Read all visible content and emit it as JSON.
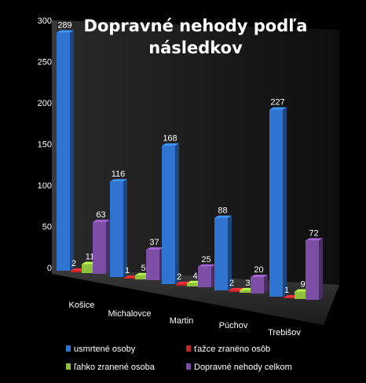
{
  "chart_data": {
    "type": "bar",
    "title_lines": [
      "Dopravné nehody podľa",
      "následkov"
    ],
    "categories": [
      "Košice",
      "Michalovce",
      "Martin",
      "Púchov",
      "Trebišov"
    ],
    "series": [
      {
        "name": "usmrtené osoby",
        "color": "#2f74d0",
        "values": [
          289,
          116,
          168,
          88,
          227
        ]
      },
      {
        "name": "ťažce zranëno osôb",
        "color": "#c0242a",
        "values": [
          2,
          1,
          2,
          2,
          1
        ]
      },
      {
        "name": "ľahko zranené osoba",
        "color": "#8fc23a",
        "values": [
          11,
          5,
          4,
          3,
          9
        ]
      },
      {
        "name": "Dopravné nehody celkom",
        "color": "#7d4ea6",
        "values": [
          63,
          37,
          25,
          20,
          72
        ]
      }
    ],
    "y_ticks": [
      0,
      50,
      100,
      150,
      200,
      250,
      300
    ],
    "ylim": [
      0,
      300
    ],
    "legend_position": "bottom",
    "grid": false
  }
}
